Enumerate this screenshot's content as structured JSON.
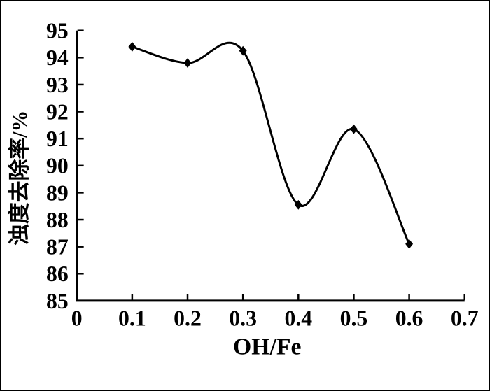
{
  "figure": {
    "background": "#ffffff",
    "border_color": "#000000"
  },
  "chart_data": {
    "type": "line",
    "title": "",
    "xlabel": "OH/Fe",
    "ylabel": "浊度去除率/%",
    "series": [
      {
        "name": "浊度去除率",
        "x": [
          0.1,
          0.2,
          0.3,
          0.4,
          0.5,
          0.6
        ],
        "y": [
          94.4,
          93.8,
          94.25,
          88.55,
          91.35,
          87.1
        ]
      }
    ],
    "xlim": [
      0,
      0.7
    ],
    "ylim": [
      85,
      95
    ],
    "xticks": {
      "values": [
        0,
        0.1,
        0.2,
        0.3,
        0.4,
        0.5,
        0.6,
        0.7
      ],
      "labels": [
        "0",
        "0.1",
        "0.2",
        "0.3",
        "0.4",
        "0.5",
        "0.6",
        "0.7"
      ]
    },
    "yticks": {
      "values": [
        85,
        86,
        87,
        88,
        89,
        90,
        91,
        92,
        93,
        94,
        95
      ],
      "labels": [
        "85",
        "86",
        "87",
        "88",
        "89",
        "90",
        "91",
        "92",
        "93",
        "94",
        "95"
      ]
    },
    "grid": false,
    "legend": "none",
    "smooth": true,
    "marker": "diamond",
    "line_color": "#000000",
    "marker_color": "#000000",
    "axis_color": "#000000"
  }
}
